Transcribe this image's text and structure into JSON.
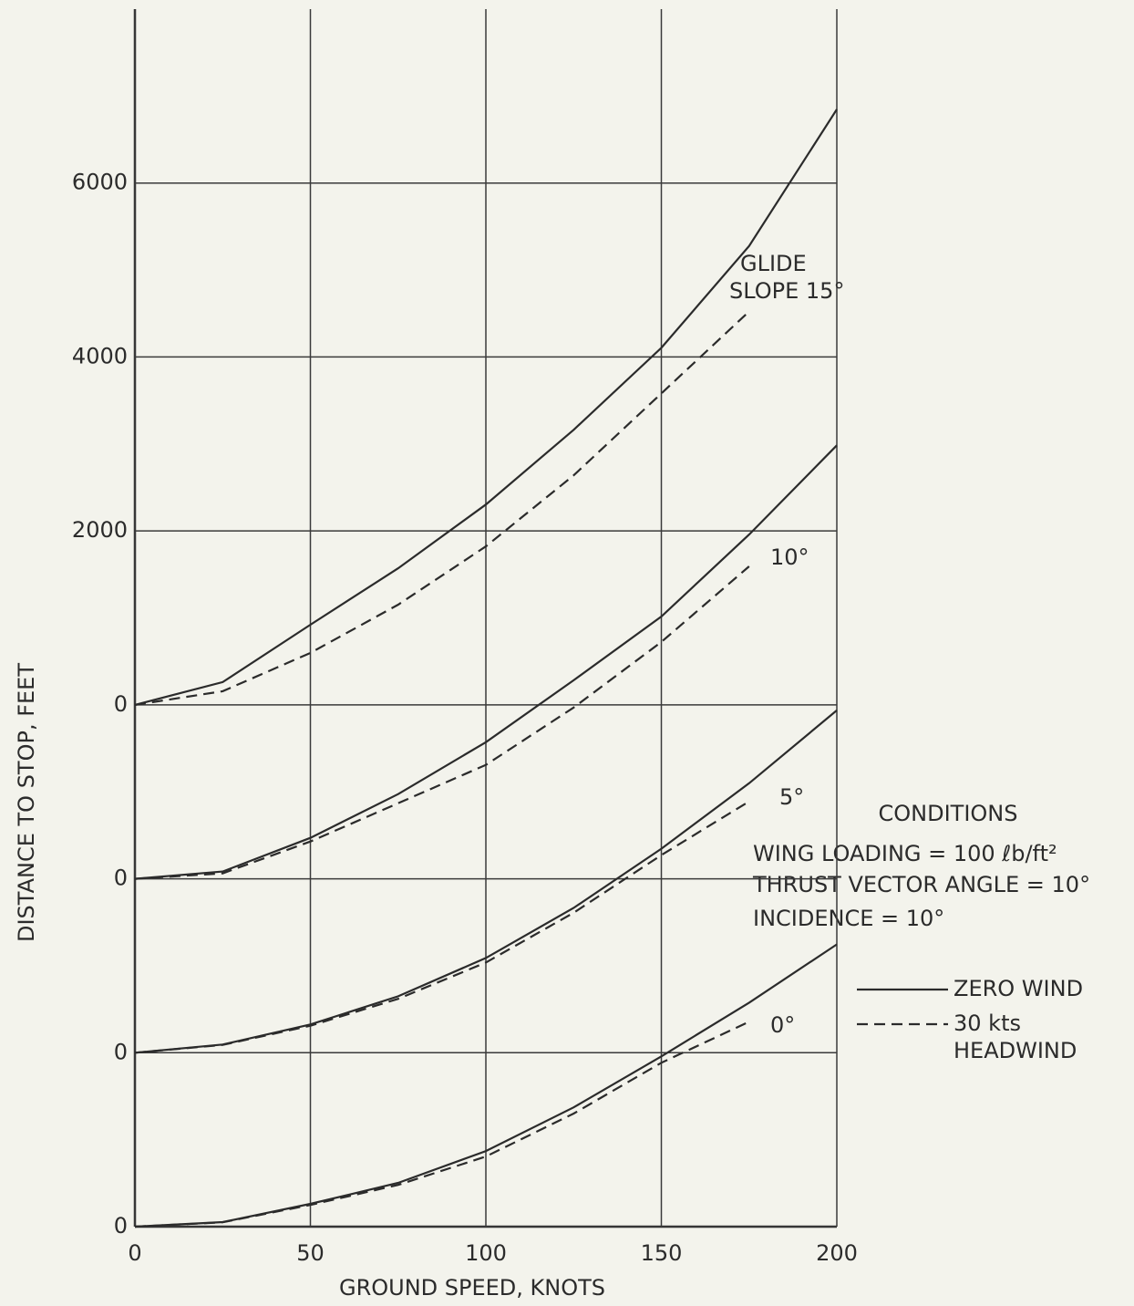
{
  "chart_data": {
    "type": "line",
    "xlabel": "GROUND SPEED, KNOTS",
    "ylabel": "DISTANCE TO STOP, FEET",
    "x": [
      0,
      25,
      50,
      75,
      100,
      125,
      150,
      175,
      200
    ],
    "xlim": [
      0,
      200
    ],
    "xticks": [
      0,
      50,
      100,
      150,
      200
    ],
    "ylim": [
      0,
      14000
    ],
    "yticks": [
      0,
      {
        "value": 2000,
        "label": "0"
      },
      {
        "value": 4000,
        "label": "0"
      },
      {
        "value": 6000,
        "label": "0"
      },
      {
        "value": 8000,
        "label": "2000"
      },
      {
        "value": 10000,
        "label": "4000"
      },
      {
        "value": 12000,
        "label": "6000"
      }
    ],
    "grid": true,
    "color": "#2b2b2b",
    "legend": [
      {
        "name": "ZERO WIND",
        "dashed": false
      },
      {
        "name": "30 kts HEADWIND",
        "dashed": true
      }
    ],
    "curves": [
      {
        "label": "0°",
        "values": [
          0,
          52,
          262,
          503,
          869,
          1372,
          1958,
          2576,
          3246
        ],
        "headwind_values": [
          0,
          50,
          250,
          480,
          806,
          1300,
          1885,
          2356,
          null
        ]
      },
      {
        "label": "5°",
        "values": [
          2000,
          2094,
          2325,
          2649,
          3089,
          3665,
          4346,
          5099,
          5937
        ],
        "headwind_values": [
          2000,
          2090,
          2310,
          2620,
          3037,
          3610,
          4272,
          4890,
          null
        ]
      },
      {
        "label": "10°",
        "values": [
          4000,
          4084,
          4471,
          4974,
          5571,
          6283,
          7016,
          7958,
          8984
        ],
        "headwind_values": [
          4000,
          4063,
          4429,
          4869,
          5309,
          5969,
          6723,
          7592,
          null
        ]
      },
      {
        "label": "GLIDE SLOPE 15°",
        "values": [
          6000,
          6262,
          6921,
          7571,
          8304,
          9162,
          10105,
          11277,
          12848
        ],
        "headwind_values": [
          6000,
          6157,
          6597,
          7152,
          7822,
          8639,
          9581,
          10524,
          null
        ]
      }
    ],
    "annotations": [
      "CONDITIONS",
      "WING LOADING = 100 ℓb/ft²",
      "THRUST VECTOR ANGLE = 10°",
      "INCIDENCE = 10°"
    ]
  }
}
